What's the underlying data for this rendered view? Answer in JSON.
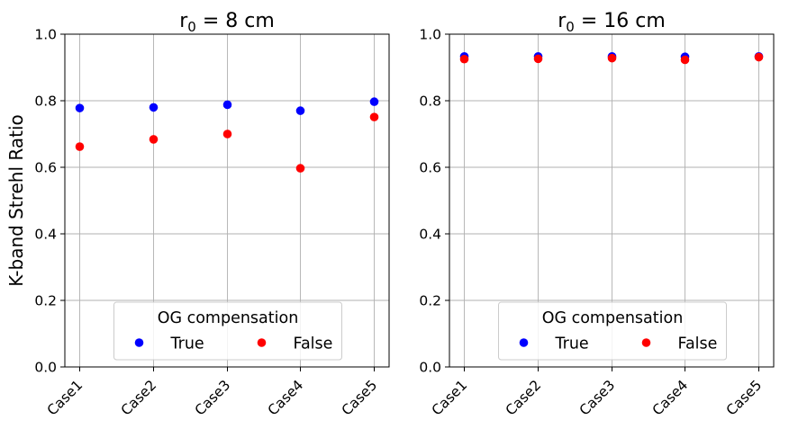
{
  "chart_data": [
    {
      "type": "scatter",
      "title": {
        "prefix": "r",
        "subscript": "0",
        "suffix": " = 8 cm"
      },
      "xlabel": "",
      "ylabel": "K-band Strehl Ratio",
      "categories": [
        "Case1",
        "Case2",
        "Case3",
        "Case4",
        "Case5"
      ],
      "ylim": [
        0,
        1.0
      ],
      "yticks": [
        "0.0",
        "0.2",
        "0.4",
        "0.6",
        "0.8",
        "1.0"
      ],
      "grid": true,
      "legend": {
        "title": "OG compensation",
        "placement": "lower-center"
      },
      "series": [
        {
          "name": "True",
          "color": "#0000ff",
          "values": [
            0.778,
            0.78,
            0.788,
            0.77,
            0.797
          ]
        },
        {
          "name": "False",
          "color": "#ff0000",
          "values": [
            0.662,
            0.684,
            0.7,
            0.597,
            0.751
          ]
        }
      ]
    },
    {
      "type": "scatter",
      "title": {
        "prefix": "r",
        "subscript": "0",
        "suffix": " = 16 cm"
      },
      "xlabel": "",
      "ylabel": "",
      "categories": [
        "Case1",
        "Case2",
        "Case3",
        "Case4",
        "Case5"
      ],
      "ylim": [
        0,
        1.0
      ],
      "yticks": [
        "0.0",
        "0.2",
        "0.4",
        "0.6",
        "0.8",
        "1.0"
      ],
      "grid": true,
      "legend": {
        "title": "OG compensation",
        "placement": "lower-center"
      },
      "series": [
        {
          "name": "True",
          "color": "#0000ff",
          "values": [
            0.933,
            0.933,
            0.933,
            0.932,
            0.933
          ]
        },
        {
          "name": "False",
          "color": "#ff0000",
          "values": [
            0.925,
            0.926,
            0.928,
            0.923,
            0.931
          ]
        }
      ]
    }
  ]
}
